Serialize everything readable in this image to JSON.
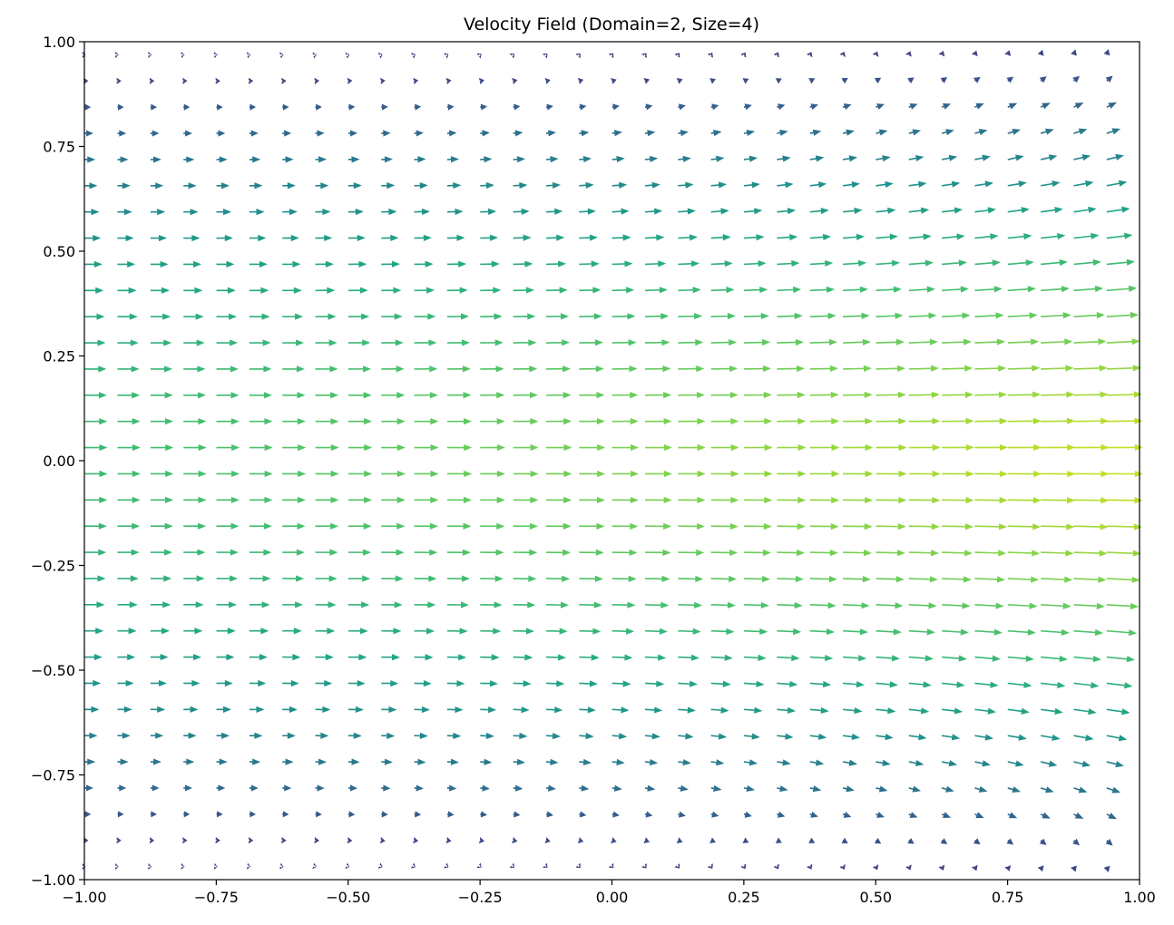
{
  "chart_data": {
    "type": "quiver",
    "title": "Velocity Field (Domain=2, Size=4)",
    "xlabel": "",
    "ylabel": "",
    "xlim": [
      -1.0,
      1.0
    ],
    "ylim": [
      -1.0,
      1.0
    ],
    "grid": false,
    "legend": "none",
    "colormap": "viridis",
    "x_ticks": [
      -1.0,
      -0.75,
      -0.5,
      -0.25,
      0.0,
      0.25,
      0.5,
      0.75,
      1.0
    ],
    "y_ticks": [
      -1.0,
      -0.75,
      -0.5,
      -0.25,
      0.0,
      0.25,
      0.5,
      0.75,
      1.0
    ],
    "x_tick_labels": [
      "−1.00",
      "−0.75",
      "−0.50",
      "−0.25",
      "0.00",
      "0.25",
      "0.50",
      "0.75",
      "1.00"
    ],
    "y_tick_labels": [
      "−1.00",
      "−0.75",
      "−0.50",
      "−0.25",
      "0.00",
      "0.25",
      "0.50",
      "0.75",
      "1.00"
    ],
    "grid_points": 32,
    "field": "u = (1 - (y/0.9375)^2) * (1 + 0.6 * ((x+1)/2)^2), v = 0.12 * y * ((x+1)/2)^2"
  }
}
